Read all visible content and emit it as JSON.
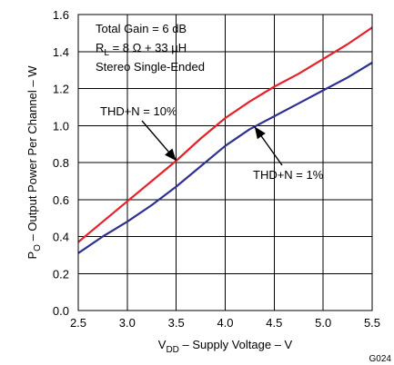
{
  "chart_data": {
    "type": "line",
    "xlabel": {
      "main": "V",
      "sub": "DD",
      "rest": " – Supply Voltage – V"
    },
    "ylabel": {
      "main": "P",
      "sub": "O",
      "rest": " – Output Power Per Channel – W"
    },
    "xlim": [
      2.5,
      5.5
    ],
    "ylim": [
      0,
      1.6
    ],
    "xticks": [
      2.5,
      3.0,
      3.5,
      4.0,
      4.5,
      5.0,
      5.5
    ],
    "xtick_labels": [
      "2.5",
      "3.0",
      "3.5",
      "4.0",
      "4.5",
      "5.0",
      "5.5"
    ],
    "yticks": [
      0.0,
      0.2,
      0.4,
      0.6,
      0.8,
      1.0,
      1.2,
      1.4,
      1.6
    ],
    "ytick_labels": [
      "0.0",
      "0.2",
      "0.4",
      "0.6",
      "0.8",
      "1.0",
      "1.2",
      "1.4",
      "1.6"
    ],
    "grid": true,
    "conditions": {
      "line1": "Total Gain = 6 dB",
      "line2_main": "R",
      "line2_sub": "L",
      "line2_rest": " = 8 Ω + 33 µH",
      "line3": "Stereo Single-Ended"
    },
    "figure_id": "G024",
    "series": [
      {
        "name": "THD+N = 10%",
        "color": "#e8202a",
        "x": [
          2.5,
          2.75,
          3.0,
          3.25,
          3.5,
          3.75,
          4.0,
          4.25,
          4.5,
          4.75,
          5.0,
          5.25,
          5.5
        ],
        "y": [
          0.37,
          0.48,
          0.59,
          0.7,
          0.81,
          0.93,
          1.04,
          1.13,
          1.21,
          1.28,
          1.36,
          1.44,
          1.53
        ]
      },
      {
        "name": "THD+N = 1%",
        "color": "#2e3192",
        "x": [
          2.5,
          2.75,
          3.0,
          3.25,
          3.5,
          3.75,
          4.0,
          4.25,
          4.5,
          4.75,
          5.0,
          5.25,
          5.5
        ],
        "y": [
          0.31,
          0.4,
          0.48,
          0.57,
          0.67,
          0.78,
          0.89,
          0.98,
          1.05,
          1.12,
          1.19,
          1.26,
          1.34
        ]
      }
    ],
    "annotations": [
      {
        "text": "THD+N = 10%",
        "series": 0,
        "arrow_x": 3.5
      },
      {
        "text": "THD+N = 1%",
        "series": 1,
        "arrow_x": 4.3
      }
    ]
  }
}
